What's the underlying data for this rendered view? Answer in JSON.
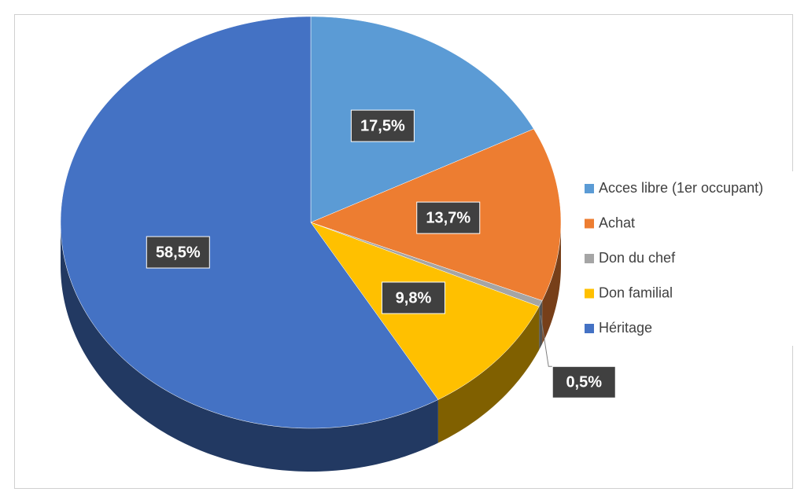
{
  "chart_data": {
    "type": "pie",
    "categories": [
      "Acces libre (1er occupant)",
      "Achat",
      "Don du chef",
      "Don familial",
      "Héritage"
    ],
    "values": [
      17.5,
      13.7,
      0.5,
      9.8,
      58.5
    ],
    "value_labels": [
      "17,5%",
      "13,7%",
      "0,5%",
      "9,8%",
      "58,5%"
    ],
    "colors": [
      "#5b9bd5",
      "#ed7d31",
      "#a5a5a5",
      "#ffc000",
      "#4472c4"
    ],
    "legend": "right"
  }
}
